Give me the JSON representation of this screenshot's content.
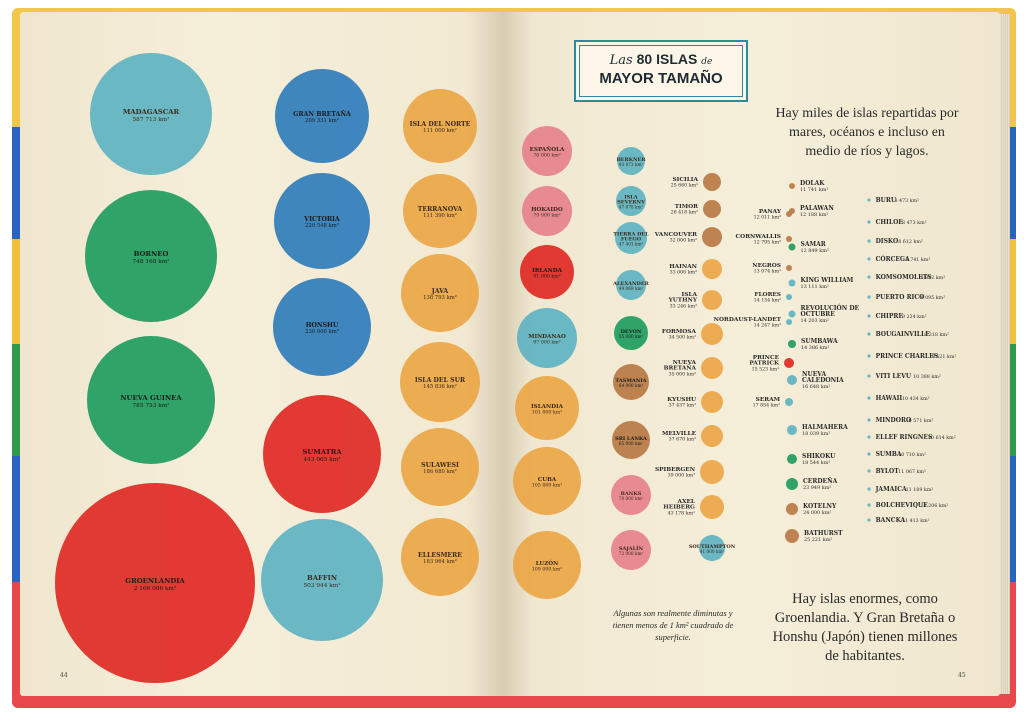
{
  "header": {
    "title_small_1": "Las",
    "title_num": "80 ISLAS",
    "title_small_2": "de",
    "title_line2": "MAYOR TAMAÑO"
  },
  "text": {
    "intro": "Hay miles de islas repartidas por mares, océanos e incluso en medio de ríos y lagos.",
    "outro": "Hay islas enormes, como Groenlandia. Y Gran Bretaña o Honshu (Japón) tienen millones de habitantes.",
    "note": "Algunas son realmente diminutas y tienen menos de 1 km² cuadrado de superficie."
  },
  "pages": {
    "left": "44",
    "right": "45"
  },
  "colors": {
    "red": "#e02a24",
    "green": "#1f9c5e",
    "blue": "#2f7dbb",
    "teal": "#5eb3c2",
    "orange": "#eba646",
    "pink": "#e7818b",
    "brown": "#b77a45"
  },
  "islands": [
    {
      "name": "MADAGASCAR",
      "area": "587 713 km²",
      "color": "teal"
    },
    {
      "name": "BORNEO",
      "area": "748 168 km²",
      "color": "green"
    },
    {
      "name": "NUEVA GUINEA",
      "area": "785 753 km²",
      "color": "green"
    },
    {
      "name": "GROENLANDIA",
      "area": "2 166 086 km²",
      "color": "red"
    },
    {
      "name": "GRAN BRETAÑA",
      "area": "209 331 km²",
      "color": "blue"
    },
    {
      "name": "VICTORIA",
      "area": "220 548 km²",
      "color": "blue"
    },
    {
      "name": "HONSHU",
      "area": "230 000 km²",
      "color": "blue"
    },
    {
      "name": "SUMATRA",
      "area": "443 065 km²",
      "color": "red"
    },
    {
      "name": "BAFFIN",
      "area": "503 944 km²",
      "color": "teal"
    },
    {
      "name": "ISLA DEL NORTE",
      "area": "111 000 km²",
      "color": "orange"
    },
    {
      "name": "TERRANOVA",
      "area": "111 390 km²",
      "color": "orange"
    },
    {
      "name": "JAVA",
      "area": "138 793 km²",
      "color": "orange"
    },
    {
      "name": "ISLA DEL SUR",
      "area": "145 836 km²",
      "color": "orange"
    },
    {
      "name": "SULAWESI",
      "area": "186 680 km²",
      "color": "orange"
    },
    {
      "name": "ELLESMERE",
      "area": "183 964 km²",
      "color": "orange"
    },
    {
      "name": "ESPAÑOLA",
      "area": "76 000 km²",
      "color": "pink"
    },
    {
      "name": "HOKAIDO",
      "area": "79 000 km²",
      "color": "pink"
    },
    {
      "name": "IRLANDA",
      "area": "81 000 km²",
      "color": "red"
    },
    {
      "name": "MINDANAO",
      "area": "97 000 km²",
      "color": "teal"
    },
    {
      "name": "ISLANDIA",
      "area": "101 800 km²",
      "color": "orange"
    },
    {
      "name": "CUBA",
      "area": "105 800 km²",
      "color": "orange"
    },
    {
      "name": "LUZÓN",
      "area": "109 000 km²",
      "color": "orange"
    },
    {
      "name": "BERKNER",
      "area": "43 873 km²",
      "color": "teal"
    },
    {
      "name": "ISLA SEVERNY",
      "area": "47 078 km²",
      "color": "teal"
    },
    {
      "name": "TIERRA DEL FUEGO",
      "area": "47 401 km²",
      "color": "teal"
    },
    {
      "name": "ALEXANDER",
      "area": "49 069 km²",
      "color": "teal"
    },
    {
      "name": "DEVON",
      "area": "55 000 km²",
      "color": "green"
    },
    {
      "name": "TASMANIA",
      "area": "64 000 km²",
      "color": "brown"
    },
    {
      "name": "SRI LANKA",
      "area": "65 000 km²",
      "color": "brown"
    },
    {
      "name": "BANKS",
      "area": "70 000 km²",
      "color": "pink"
    },
    {
      "name": "SAJALÍN",
      "area": "72 000 km²",
      "color": "pink"
    },
    {
      "name": "SICILIA",
      "area": "25 660 km²",
      "color": "brown"
    },
    {
      "name": "TIMOR",
      "area": "28 418 km²",
      "color": "brown"
    },
    {
      "name": "VANCOUVER",
      "area": "32 000 km²",
      "color": "brown"
    },
    {
      "name": "HAINAN",
      "area": "33 000 km²",
      "color": "orange"
    },
    {
      "name": "ISLA YUTHNY",
      "area": "33 246 km²",
      "color": "orange"
    },
    {
      "name": "FORMOSA",
      "area": "34 500 km²",
      "color": "orange"
    },
    {
      "name": "NUEVA BRETAÑA",
      "area": "35 000 km²",
      "color": "orange"
    },
    {
      "name": "KYUSHU",
      "area": "37 437 km²",
      "color": "orange"
    },
    {
      "name": "MELVILLE",
      "area": "37 670 km²",
      "color": "orange"
    },
    {
      "name": "SPIBERGEN",
      "area": "39 000 km²",
      "color": "orange"
    },
    {
      "name": "AXEL HEIBERG",
      "area": "43 178 km²",
      "color": "orange"
    },
    {
      "name": "SOUTHAMPTON",
      "area": "41 000 km²",
      "color": "teal"
    },
    {
      "name": "PANAY",
      "area": "12 011 km²",
      "color": "brown"
    },
    {
      "name": "CORNWALLIS",
      "area": "12 795 km²",
      "color": "brown"
    },
    {
      "name": "NEGROS",
      "area": "13 074 km²",
      "color": "brown"
    },
    {
      "name": "FLORES",
      "area": "14 154 km²",
      "color": "teal"
    },
    {
      "name": "NORDAUST-LANDET",
      "area": "14 247 km²",
      "color": "teal"
    },
    {
      "name": "PRINCE PATRICK",
      "area": "15 523 km²",
      "color": "red"
    },
    {
      "name": "SERAM",
      "area": "17 854 km²",
      "color": "teal"
    },
    {
      "name": "DOLAK",
      "area": "11 741 km²",
      "color": "brown"
    },
    {
      "name": "PALAWAN",
      "area": "12 188 km²",
      "color": "brown"
    },
    {
      "name": "SAMAR",
      "area": "12 849 km²",
      "color": "green"
    },
    {
      "name": "KING WILLIAM",
      "area": "13 111 km²",
      "color": "teal"
    },
    {
      "name": "REVOLUCIÓN DE OCTUBRE",
      "area": "14 203 km²",
      "color": "teal"
    },
    {
      "name": "SUMBAWA",
      "area": "14 386 km²",
      "color": "green"
    },
    {
      "name": "NUEVA CALEDONIA",
      "area": "16 648 km²",
      "color": "teal"
    },
    {
      "name": "HALMAHERA",
      "area": "18 039 km²",
      "color": "teal"
    },
    {
      "name": "SHIKOKU",
      "area": "18 544 km²",
      "color": "green"
    },
    {
      "name": "CERDEÑA",
      "area": "23 949 km²",
      "color": "green"
    },
    {
      "name": "KOTELNY",
      "area": "24 000 km²",
      "color": "brown"
    },
    {
      "name": "BATHURST",
      "area": "25 221 km²",
      "color": "brown"
    },
    {
      "name": "BURU",
      "area": "8 473 km²",
      "color": "teal"
    },
    {
      "name": "CHILOE",
      "area": "8 473 km²",
      "color": "teal"
    },
    {
      "name": "DISKO",
      "area": "8 612 km²",
      "color": "teal"
    },
    {
      "name": "CÓRCEGA",
      "area": "8 741 km²",
      "color": "teal"
    },
    {
      "name": "KOMSOMOLETS",
      "area": "8 812 km²",
      "color": "teal"
    },
    {
      "name": "PUERTO RICO",
      "area": "9 095 km²",
      "color": "teal"
    },
    {
      "name": "CHIPRE",
      "area": "9 234 km²",
      "color": "teal"
    },
    {
      "name": "BOUGAINVILLE",
      "area": "9 318 km²",
      "color": "teal"
    },
    {
      "name": "PRINCE CHARLES",
      "area": "9 521 km²",
      "color": "teal"
    },
    {
      "name": "VITI LEVU",
      "area": "10 388 km²",
      "color": "teal"
    },
    {
      "name": "HAWAII",
      "area": "10 434 km²",
      "color": "teal"
    },
    {
      "name": "MINDORO",
      "area": "10 571 km²",
      "color": "teal"
    },
    {
      "name": "ELLEF RINGNES",
      "area": "10 614 km²",
      "color": "teal"
    },
    {
      "name": "SUMBA",
      "area": "10 710 km²",
      "color": "teal"
    },
    {
      "name": "BYLOT",
      "area": "11 067 km²",
      "color": "teal"
    },
    {
      "name": "JAMAICA",
      "area": "11 189 km²",
      "color": "teal"
    },
    {
      "name": "BOLCHEVIQUE",
      "area": "11 206 km²",
      "color": "teal"
    },
    {
      "name": "BANCKA",
      "area": "11 413 km²",
      "color": "teal"
    }
  ]
}
